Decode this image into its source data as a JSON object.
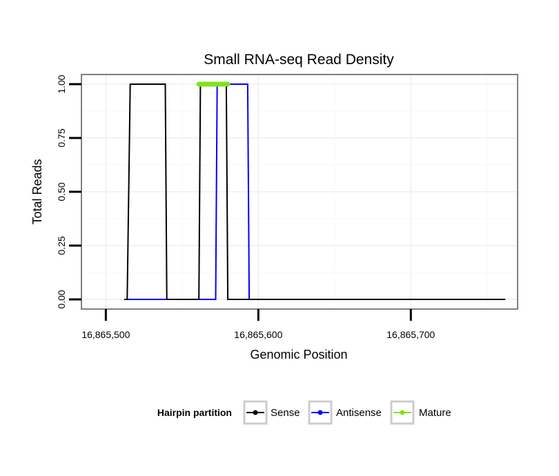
{
  "chart_data": {
    "type": "line",
    "title": "Small RNA-seq Read Density",
    "xlabel": "Genomic Position",
    "ylabel": "Total Reads",
    "xlim": [
      16865484,
      16865770
    ],
    "ylim": [
      -0.045,
      1.045
    ],
    "x_ticks": [
      16865500,
      16865600,
      16865700
    ],
    "x_tick_labels": [
      "16,865,500",
      "16,865,600",
      "16,865,700"
    ],
    "y_ticks": [
      0,
      0.25,
      0.5,
      0.75,
      1
    ],
    "y_tick_labels": [
      "0.00",
      "0.25",
      "0.50",
      "0.75",
      "1.00"
    ],
    "grid": true,
    "legend": {
      "title": "Hairpin partition",
      "position": "bottom",
      "entries": [
        "Sense",
        "Antisense",
        "Mature"
      ]
    },
    "series": [
      {
        "name": "Antisense",
        "color": "#0000ff",
        "x": [
          16865513,
          16865515,
          16865538,
          16865539,
          16865572,
          16865573,
          16865593,
          16865594,
          16865640
        ],
        "y": [
          0,
          0,
          0,
          0,
          0,
          1,
          1,
          0,
          0
        ]
      },
      {
        "name": "Sense",
        "color": "#000000",
        "x": [
          16865512,
          16865514,
          16865516,
          16865539,
          16865540,
          16865561,
          16865562,
          16865579,
          16865580,
          16865762
        ],
        "y": [
          0,
          0,
          1,
          1,
          0,
          0,
          1,
          1,
          0,
          0
        ]
      },
      {
        "name": "Mature",
        "color": "#7fe31a",
        "x": [
          16865561,
          16865580
        ],
        "y": [
          1,
          1
        ]
      }
    ]
  }
}
